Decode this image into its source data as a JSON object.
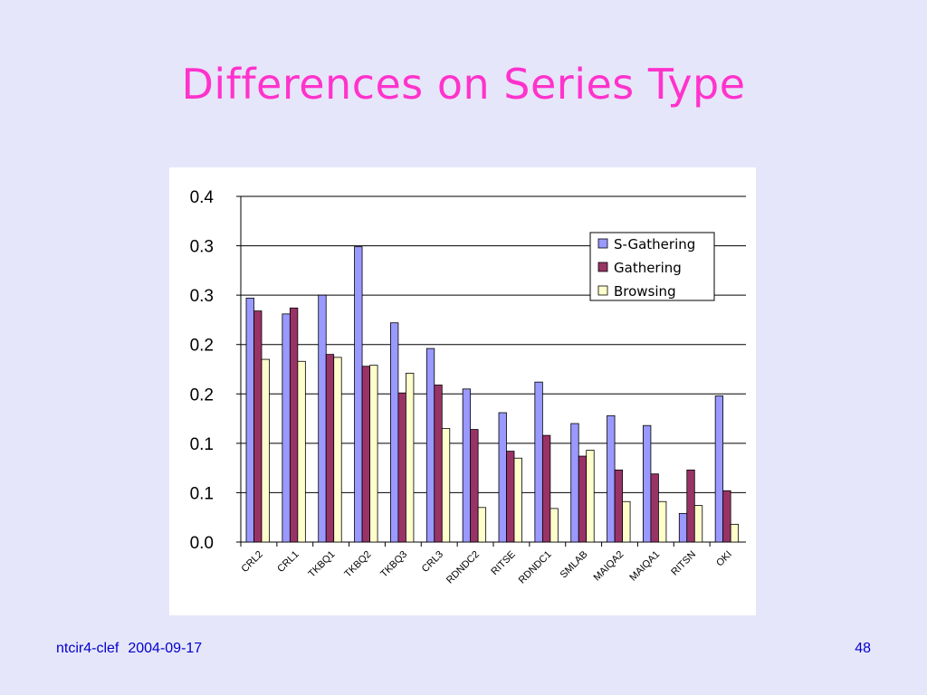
{
  "slide": {
    "title": "Differences on Series Type",
    "footer_source": "ntcir4-clef",
    "footer_date": "2004-09-17",
    "page_number": "48"
  },
  "chart_data": {
    "type": "bar",
    "categories": [
      "CRL2",
      "CRL1",
      "TKBQ1",
      "TKBQ2",
      "TKBQ3",
      "CRL3",
      "RDNDC2",
      "RITSE",
      "RDNDC1",
      "SMLAB",
      "MAIQA2",
      "MAIQA1",
      "RITSN",
      "OKI"
    ],
    "series": [
      {
        "name": "S-Gathering",
        "color": "#9999ff",
        "values": [
          0.247,
          0.231,
          0.25,
          0.299,
          0.222,
          0.196,
          0.155,
          0.131,
          0.162,
          0.12,
          0.128,
          0.118,
          0.029,
          0.148
        ]
      },
      {
        "name": "Gathering",
        "color": "#993366",
        "values": [
          0.234,
          0.237,
          0.19,
          0.178,
          0.151,
          0.159,
          0.114,
          0.092,
          0.108,
          0.087,
          0.073,
          0.069,
          0.073,
          0.052
        ]
      },
      {
        "name": "Browsing",
        "color": "#ffffcc",
        "values": [
          0.185,
          0.183,
          0.187,
          0.179,
          0.171,
          0.115,
          0.035,
          0.085,
          0.034,
          0.093,
          0.041,
          0.041,
          0.037,
          0.018
        ]
      }
    ],
    "ylim": [
      0,
      0.35
    ],
    "y_ticks": [
      0,
      0.05,
      0.1,
      0.15,
      0.2,
      0.25,
      0.3,
      0.35
    ],
    "y_tick_labels": [
      "0.0",
      "0.1",
      "0.1",
      "0.2",
      "0.2",
      "0.3",
      "0.3",
      "0.4"
    ],
    "grid": true,
    "legend_position": "top-right",
    "title": "",
    "xlabel": "",
    "ylabel": ""
  }
}
